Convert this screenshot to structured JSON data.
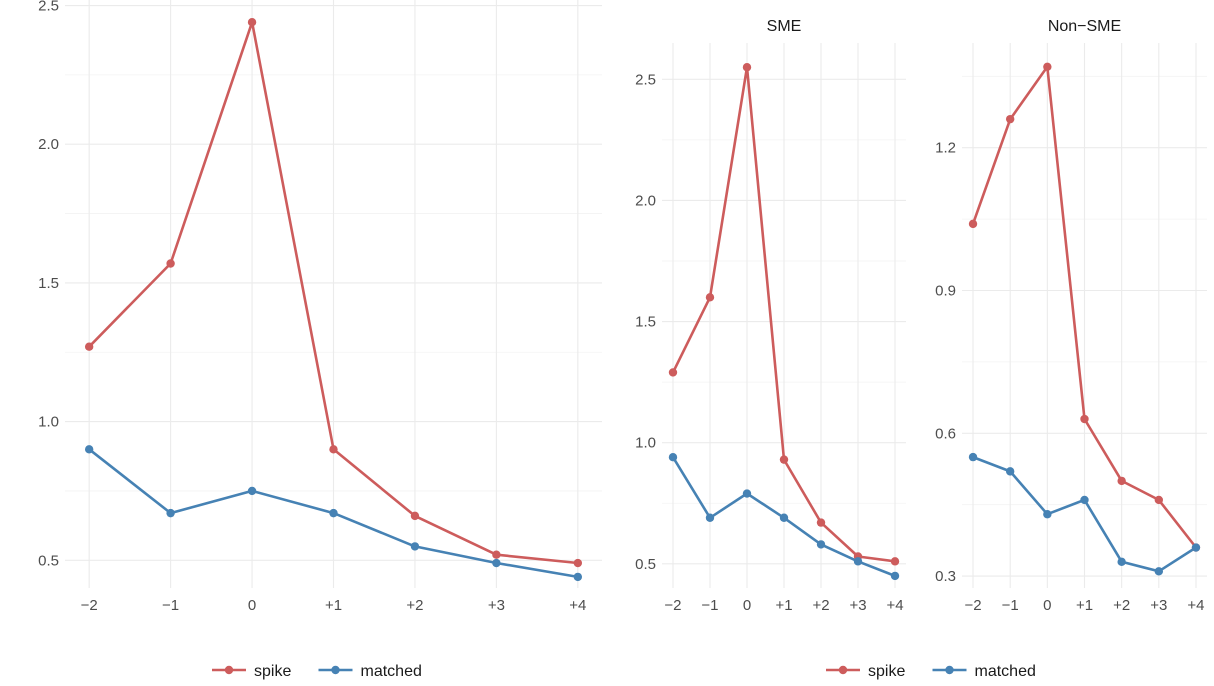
{
  "colors": {
    "spike": "#CD5C5C",
    "matched": "#4682B4",
    "grid": "#EBEBEB"
  },
  "legends": [
    {
      "items": [
        {
          "series": "spike",
          "label": "spike"
        },
        {
          "series": "matched",
          "label": "matched"
        }
      ]
    },
    {
      "items": [
        {
          "series": "spike",
          "label": "spike"
        },
        {
          "series": "matched",
          "label": "matched"
        }
      ]
    }
  ],
  "chart_data": [
    {
      "type": "line",
      "title": "",
      "xlabel": "",
      "ylabel": "",
      "categories": [
        "−2",
        "−1",
        "0",
        "+1",
        "+2",
        "+3",
        "+4"
      ],
      "yticks": [
        0.5,
        1.0,
        1.5,
        2.0,
        2.5
      ],
      "ytick_labels": [
        "0.5",
        "1.0",
        "1.5",
        "2.0",
        "2.5"
      ],
      "ylim": [
        0.4,
        2.52
      ],
      "grid": true,
      "series": [
        {
          "name": "spike",
          "color": "#CD5C5C",
          "values": [
            1.27,
            1.57,
            2.44,
            0.9,
            0.66,
            0.52,
            0.49
          ]
        },
        {
          "name": "matched",
          "color": "#4682B4",
          "values": [
            0.9,
            0.67,
            0.75,
            0.67,
            0.55,
            0.49,
            0.44
          ]
        }
      ]
    },
    {
      "type": "line",
      "title": "SME",
      "xlabel": "",
      "ylabel": "",
      "categories": [
        "−2",
        "−1",
        "0",
        "+1",
        "+2",
        "+3",
        "+4"
      ],
      "yticks": [
        0.5,
        1.0,
        1.5,
        2.0,
        2.5
      ],
      "ytick_labels": [
        "0.5",
        "1.0",
        "1.5",
        "2.0",
        "2.5"
      ],
      "ylim": [
        0.4,
        2.65
      ],
      "grid": true,
      "series": [
        {
          "name": "spike",
          "color": "#CD5C5C",
          "values": [
            1.29,
            1.6,
            2.55,
            0.93,
            0.67,
            0.53,
            0.51
          ]
        },
        {
          "name": "matched",
          "color": "#4682B4",
          "values": [
            0.94,
            0.69,
            0.79,
            0.69,
            0.58,
            0.51,
            0.45
          ]
        }
      ]
    },
    {
      "type": "line",
      "title": "Non−SME",
      "xlabel": "",
      "ylabel": "",
      "categories": [
        "−2",
        "−1",
        "0",
        "+1",
        "+2",
        "+3",
        "+4"
      ],
      "yticks": [
        0.3,
        0.6,
        0.9,
        1.2
      ],
      "ytick_labels": [
        "0.3",
        "0.6",
        "0.9",
        "1.2"
      ],
      "ylim": [
        0.275,
        1.42
      ],
      "grid": true,
      "series": [
        {
          "name": "spike",
          "color": "#CD5C5C",
          "values": [
            1.04,
            1.26,
            1.37,
            0.63,
            0.5,
            0.46,
            0.36
          ]
        },
        {
          "name": "matched",
          "color": "#4682B4",
          "values": [
            0.55,
            0.52,
            0.43,
            0.46,
            0.33,
            0.31,
            0.36
          ]
        }
      ]
    }
  ]
}
